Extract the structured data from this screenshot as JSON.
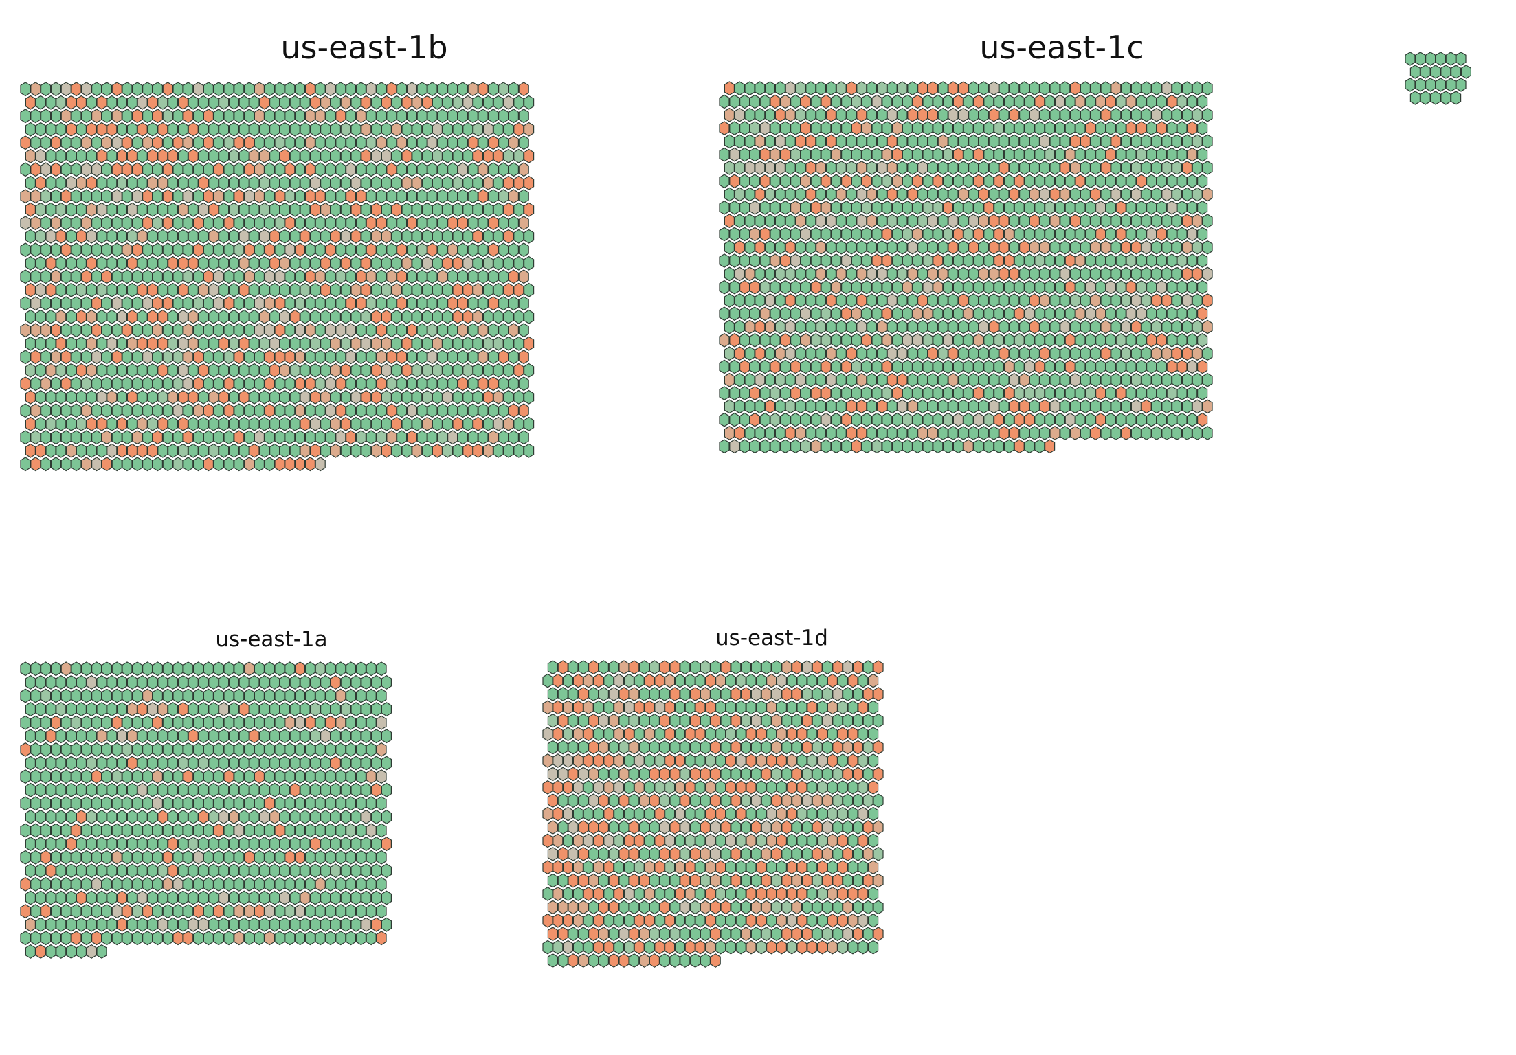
{
  "palette": {
    "healthy": "#7dc596",
    "healthy_muted": "#9cc6a4",
    "neutral": "#c7bfaf",
    "warm": "#dcab8d",
    "hot": "#f0926a",
    "outline": "#2e3b33"
  },
  "zones": [
    {
      "id": "us-east-1b",
      "title": "us-east-1b",
      "title_size": "big",
      "cells": 1430,
      "columns": 50,
      "stagger": "odd-rows-right",
      "mix": {
        "healthy": 0.62,
        "neutral": 0.12,
        "warm": 0.08,
        "hot": 0.18
      }
    },
    {
      "id": "us-east-1c",
      "title": "us-east-1c",
      "title_size": "big",
      "cells": 1329,
      "columns": 48,
      "stagger": "even-rows-right",
      "mix": {
        "healthy": 0.63,
        "neutral": 0.12,
        "warm": 0.08,
        "hot": 0.17
      }
    },
    {
      "id": "us-east-1a",
      "title": "us-east-1a",
      "title_size": "small",
      "cells": 764,
      "columns": 36,
      "stagger": "odd-rows-right",
      "mix": {
        "healthy": 0.82,
        "neutral": 0.07,
        "warm": 0.04,
        "hot": 0.07
      }
    },
    {
      "id": "us-east-1d",
      "title": "us-east-1d",
      "title_size": "small",
      "cells": 743,
      "columns": 33,
      "stagger": "even-rows-right",
      "mix": {
        "healthy": 0.4,
        "neutral": 0.17,
        "warm": 0.11,
        "hot": 0.32
      }
    },
    {
      "id": "unassigned",
      "title": "",
      "title_size": "small",
      "cells": 23,
      "columns": 6,
      "stagger": "odd-rows-right",
      "mix": {
        "healthy": 1.0,
        "neutral": 0,
        "warm": 0,
        "hot": 0
      }
    }
  ]
}
